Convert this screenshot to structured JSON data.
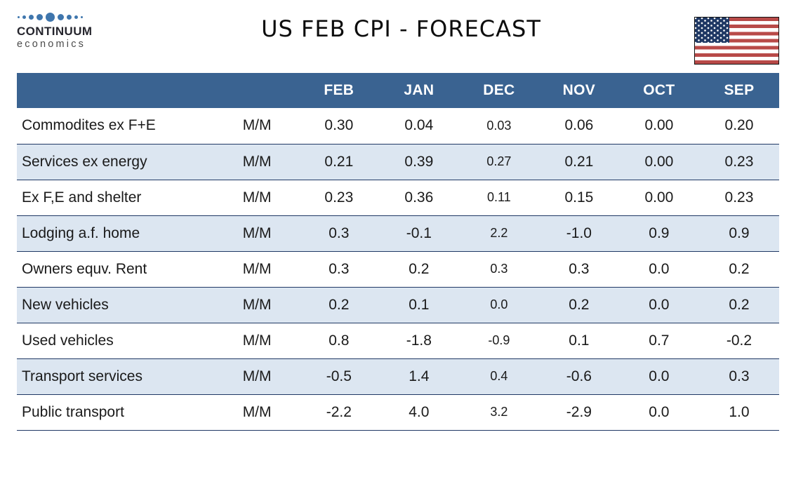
{
  "header": {
    "logo_line1": "CONTINUUM",
    "logo_line2": "economics",
    "title": "US FEB CPI - FORECAST",
    "flag": "us-flag"
  },
  "table": {
    "columns": [
      "",
      "",
      "FEB",
      "JAN",
      "DEC",
      "NOV",
      "OCT",
      "SEP"
    ],
    "rows": [
      {
        "label": "Commodites ex F+E",
        "basis": "M/M",
        "values": [
          "0.30",
          "0.04",
          "0.03",
          "0.06",
          "0.00",
          "0.20"
        ]
      },
      {
        "label": "Services ex energy",
        "basis": "M/M",
        "values": [
          "0.21",
          "0.39",
          "0.27",
          "0.21",
          "0.00",
          "0.23"
        ]
      },
      {
        "label": "Ex F,E and shelter",
        "basis": "M/M",
        "values": [
          "0.23",
          "0.36",
          "0.11",
          "0.15",
          "0.00",
          "0.23"
        ]
      },
      {
        "label": "Lodging a.f. home",
        "basis": "M/M",
        "values": [
          "0.3",
          "-0.1",
          "2.2",
          "-1.0",
          "0.9",
          "0.9"
        ]
      },
      {
        "label": "Owners equv. Rent",
        "basis": "M/M",
        "values": [
          "0.3",
          "0.2",
          "0.3",
          "0.3",
          "0.0",
          "0.2"
        ]
      },
      {
        "label": "New vehicles",
        "basis": "M/M",
        "values": [
          "0.2",
          "0.1",
          "0.0",
          "0.2",
          "0.0",
          "0.2"
        ]
      },
      {
        "label": "Used vehicles",
        "basis": "M/M",
        "values": [
          "0.8",
          "-1.8",
          "-0.9",
          "0.1",
          "0.7",
          "-0.2"
        ]
      },
      {
        "label": "Transport services",
        "basis": "M/M",
        "values": [
          "-0.5",
          "1.4",
          "0.4",
          "-0.6",
          "0.0",
          "0.3"
        ]
      },
      {
        "label": "Public transport",
        "basis": "M/M",
        "values": [
          "-2.2",
          "4.0",
          "3.2",
          "-2.9",
          "0.0",
          "1.0"
        ]
      }
    ]
  },
  "colors": {
    "header_bg": "#3A6391",
    "alt_row": "#DCE6F1",
    "row_border": "#1F3864",
    "logo_blue": "#3F76AD",
    "flag_red": "#B84A48",
    "flag_navy": "#1F3864",
    "text": "#1A1A1A"
  }
}
